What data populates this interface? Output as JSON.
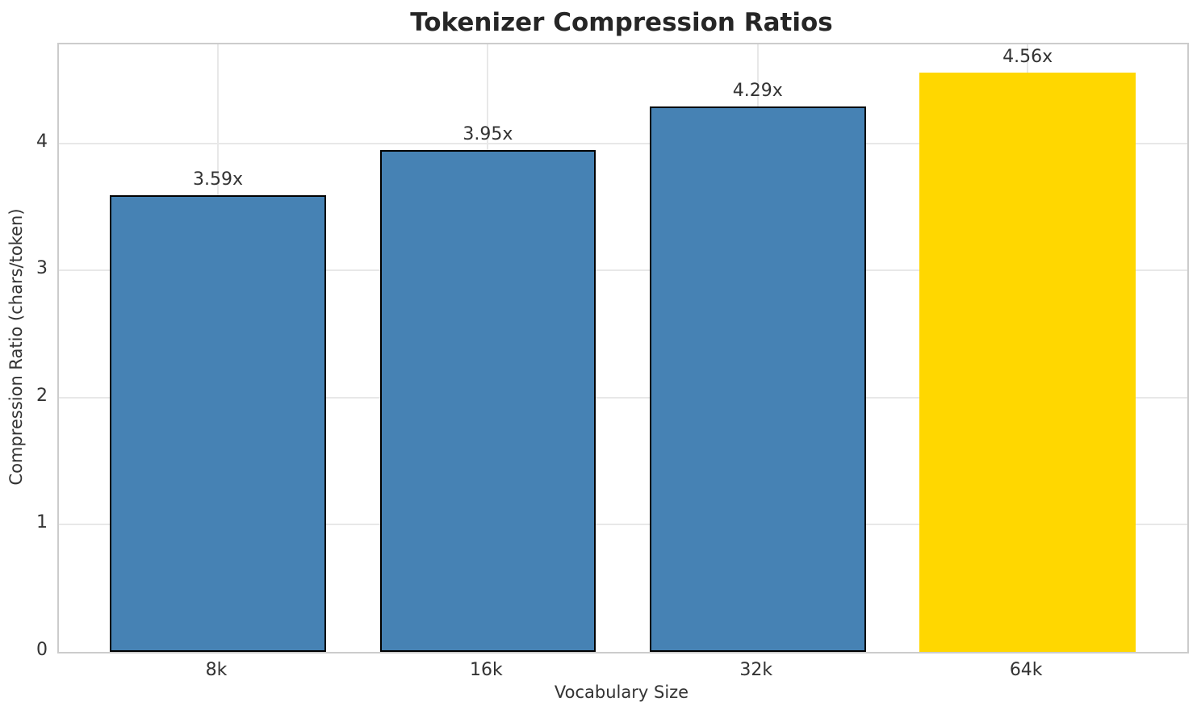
{
  "title": "Tokenizer Compression Ratios",
  "chart_data": {
    "type": "bar",
    "title": "Tokenizer Compression Ratios",
    "xlabel": "Vocabulary Size",
    "ylabel": "Compression Ratio (chars/token)",
    "categories": [
      "8k",
      "16k",
      "32k",
      "64k"
    ],
    "values": [
      3.59,
      3.95,
      4.29,
      4.56
    ],
    "bar_labels": [
      "3.59x",
      "3.95x",
      "4.29x",
      "4.56x"
    ],
    "bar_colors": [
      "#4682B4",
      "#4682B4",
      "#4682B4",
      "#FFD700"
    ],
    "bar_edge_colors": [
      "#000000",
      "#000000",
      "#000000",
      "none"
    ],
    "highlight_index": 3,
    "yticks": [
      0,
      1,
      2,
      3,
      4
    ],
    "ylim": [
      0,
      4.78
    ],
    "grid": true,
    "legend": "none",
    "grid_color": "#e8e8e8",
    "spine_color": "#cccccc",
    "background_color": "#ffffff",
    "text_color": "#333333",
    "title_color": "#262626"
  }
}
